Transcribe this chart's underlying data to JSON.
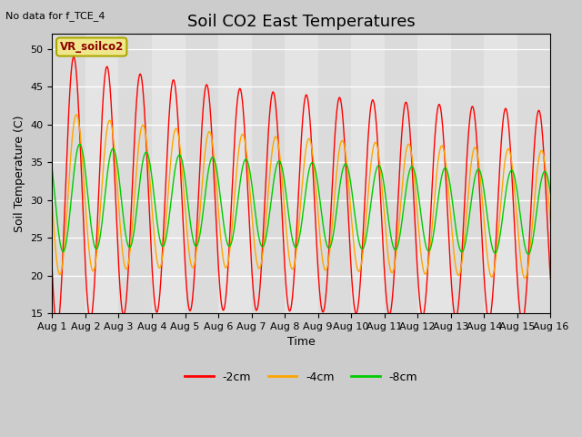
{
  "title": "Soil CO2 East Temperatures",
  "subtitle": "No data for f_TCE_4",
  "xlabel": "Time",
  "ylabel": "Soil Temperature (C)",
  "legend_label": "VR_soilco2",
  "ylim": [
    15,
    52
  ],
  "yticks": [
    15,
    20,
    25,
    30,
    35,
    40,
    45,
    50
  ],
  "series": {
    "-2cm": {
      "color": "#ff0000",
      "label": "-2cm"
    },
    "-4cm": {
      "color": "#ffa500",
      "label": "-4cm"
    },
    "-8cm": {
      "color": "#00cc00",
      "label": "-8cm"
    }
  },
  "background_color": "#cccccc",
  "plot_bg_color": "#e0e0e0",
  "n_days": 15,
  "title_fontsize": 13,
  "axis_fontsize": 9,
  "tick_fontsize": 8,
  "legend_box_color": "#f0e68c",
  "legend_box_edgecolor": "#aaa800"
}
